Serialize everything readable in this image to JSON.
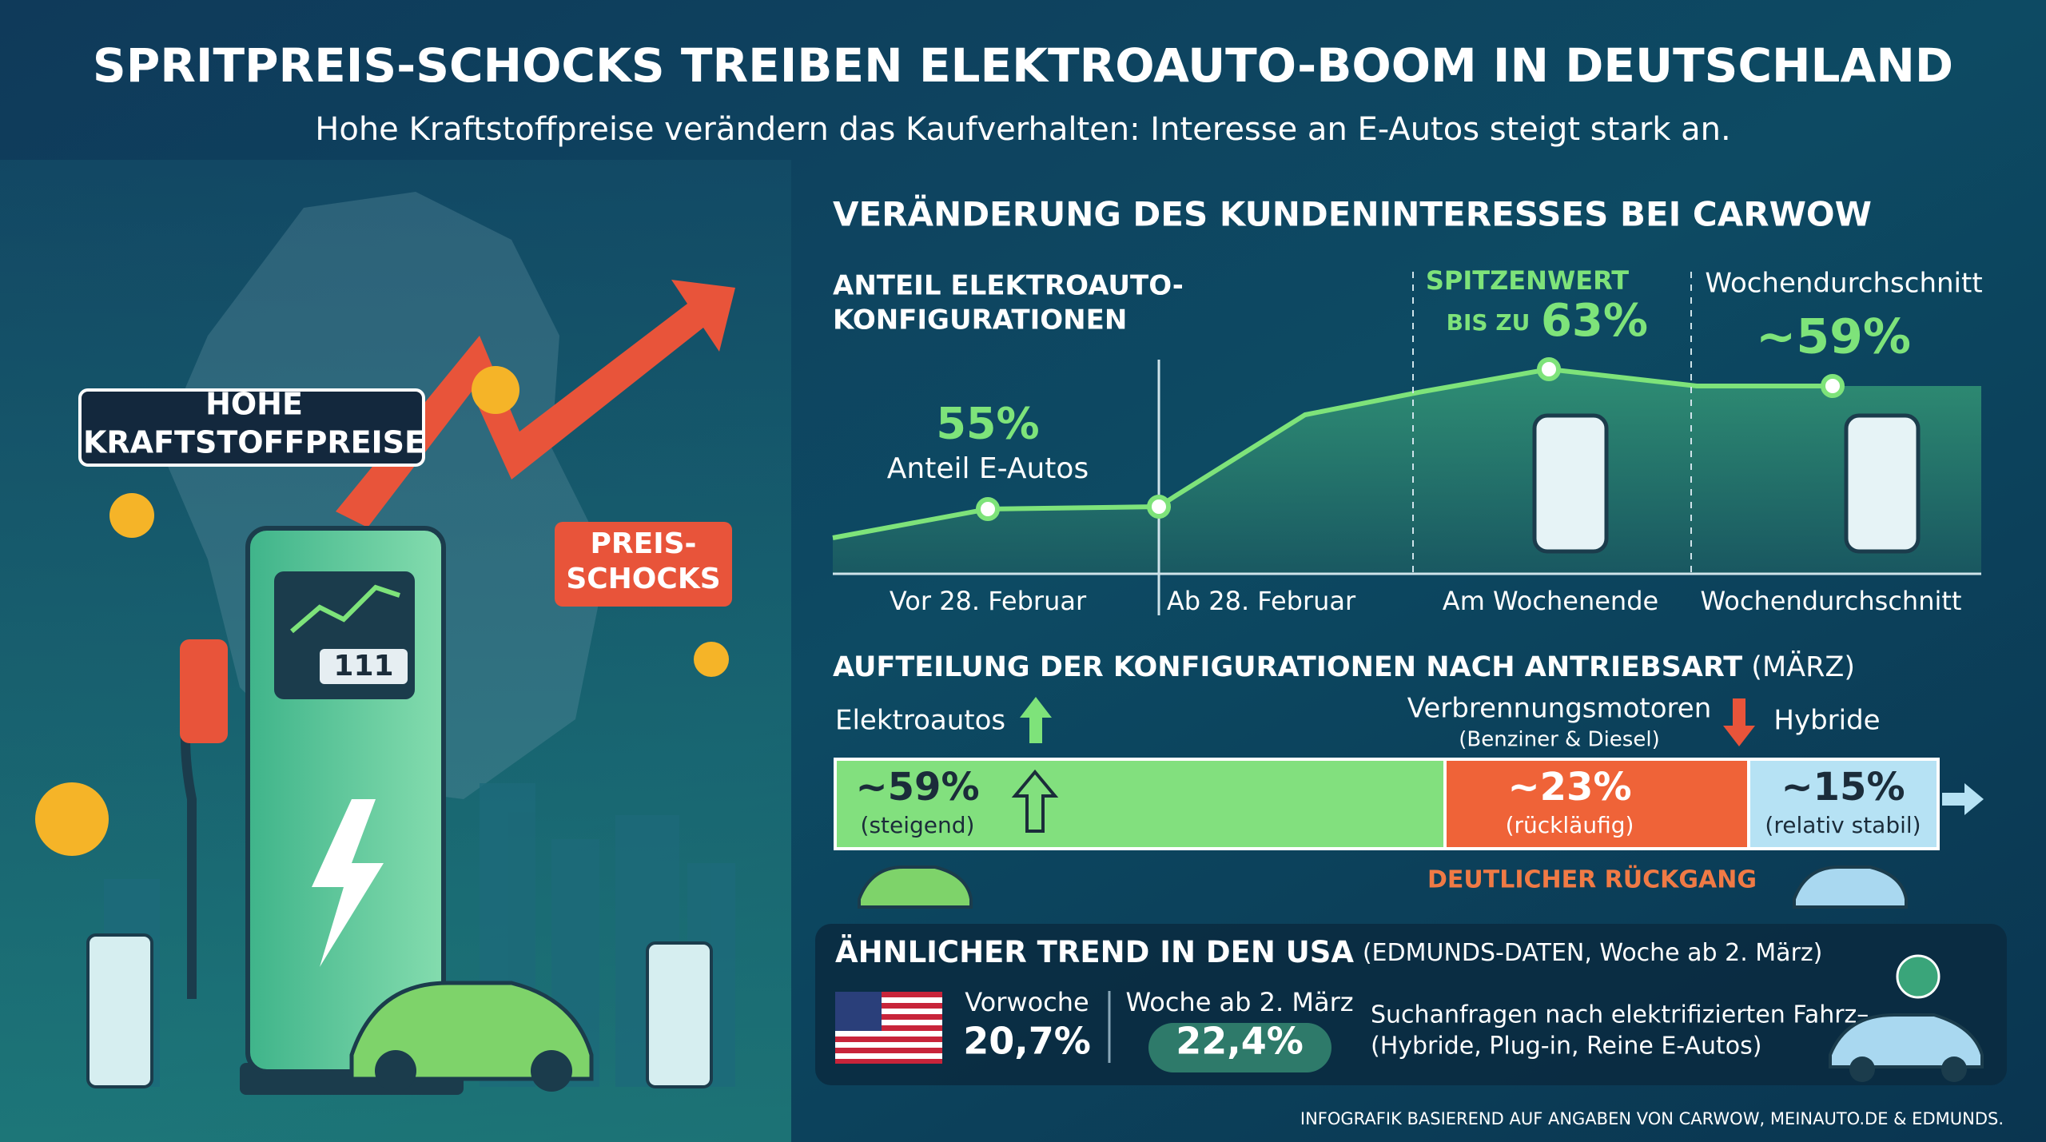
{
  "header": {
    "title": "SPRITPREIS-SCHOCKS TREIBEN ELEKTROAUTO-BOOM IN DEUTSCHLAND",
    "subtitle": "Hohe Kraftstoffpreise verändern das Kaufverhalten: Interesse an E-Autos steigt stark an."
  },
  "illustration": {
    "fuel_label": [
      "HOHE",
      "KRAFTSTOFFPREISE"
    ],
    "shock_label": [
      "PREIS-",
      "SCHOCKS"
    ],
    "pump_display": "111"
  },
  "interest": {
    "heading": "VERÄNDERUNG DES KUNDENINTERESSES BEI CARWOW",
    "subheading": [
      "ANTEIL ELEKTROAUTO-",
      "KONFIGURATIONEN"
    ],
    "start": {
      "value": "55%",
      "label": "Anteil E-Autos"
    },
    "peak": {
      "label": "SPITZENWERT",
      "prefix": "BIS ZU",
      "value": "63%"
    },
    "average": {
      "label": "Wochendurchschnitt",
      "value": "~59%"
    },
    "periods": [
      "Vor 28. Februar",
      "Ab 28. Februar",
      "Am Wochenende",
      "Wochendurchschnitt"
    ]
  },
  "split": {
    "heading": "AUFTEILUNG DER KONFIGURATIONEN NACH ANTRIEBSART",
    "heading_note": "(MÄRZ)",
    "segments": [
      {
        "name": "Elektroautos",
        "value": "~59%",
        "trend": "(steigend)"
      },
      {
        "name": "Verbrennungsmotoren",
        "note": "(Benziner & Diesel)",
        "value": "~23%",
        "trend": "(rückläufig)"
      },
      {
        "name": "Hybride",
        "value": "~15%",
        "trend": "(relativ stabil)"
      }
    ],
    "decline_note": "DEUTLICHER RÜCKGANG"
  },
  "usa": {
    "heading": "ÄHNLICHER TREND IN DEN USA",
    "heading_note": "(EDMUNDS-DATEN, Woche ab 2. März)",
    "previous": {
      "label": "Vorwoche",
      "value": "20,7%"
    },
    "current": {
      "label": "Woche ab 2. März",
      "value": "22,4%"
    },
    "description": [
      "Suchanfragen nach elektrifizierten Fahrz–",
      "(Hybride, Plug-in, Reine E-Autos)"
    ]
  },
  "footer": "INFOGRAFIK BASIEREND AUF ANGABEN VON CARWOW, MEINAUTO.DE & EDMUNDS."
}
